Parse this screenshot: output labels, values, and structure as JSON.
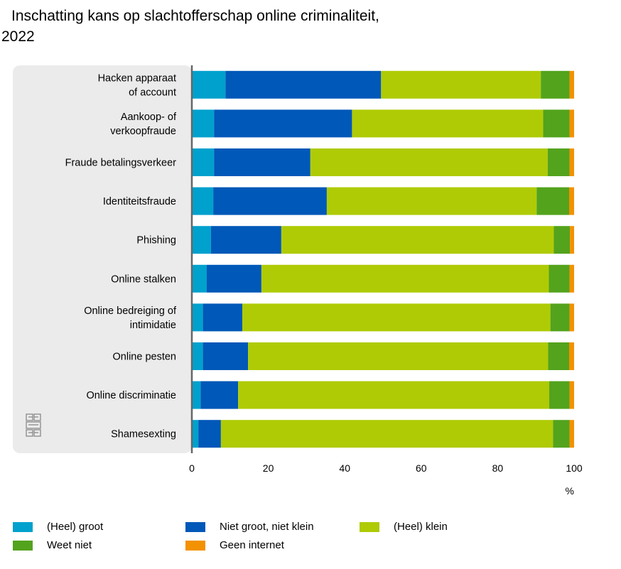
{
  "title": {
    "line1": "Inschatting kans op slachtofferschap online criminaliteit,",
    "line2": "2022"
  },
  "chart_data": {
    "type": "bar",
    "orientation": "horizontal",
    "stacked": true,
    "title": "Inschatting kans op slachtofferschap online criminaliteit, 2022",
    "xlabel": "%",
    "ylabel": "",
    "xlim": [
      0,
      100
    ],
    "xticks": [
      0,
      20,
      40,
      60,
      80,
      100
    ],
    "grid": false,
    "legend_position": "bottom",
    "categories": [
      [
        "Hacken apparaat",
        "of account"
      ],
      [
        "Aankoop- of",
        "verkoopfraude"
      ],
      [
        "Fraude betalingsverkeer"
      ],
      [
        "Identiteitsfraude"
      ],
      [
        "Phishing"
      ],
      [
        "Online stalken"
      ],
      [
        "Online bedreiging of",
        "intimidatie"
      ],
      [
        "Online pesten"
      ],
      [
        "Online discriminatie"
      ],
      [
        "Shamesexting"
      ]
    ],
    "series": [
      {
        "name": "(Heel) groot",
        "color": "#00a1cd",
        "values": [
          8.8,
          5.8,
          5.8,
          5.6,
          5.0,
          3.9,
          2.9,
          2.9,
          2.3,
          1.7
        ]
      },
      {
        "name": "Niet groot, niet klein",
        "color": "#0058b8",
        "values": [
          40.7,
          36.1,
          25.2,
          29.7,
          18.4,
          14.3,
          10.3,
          11.8,
          9.8,
          5.9
        ]
      },
      {
        "name": "(Heel) klein",
        "color": "#afcb05",
        "values": [
          41.8,
          50.0,
          62.1,
          54.9,
          71.3,
          75.2,
          80.6,
          78.5,
          81.4,
          86.9
        ]
      },
      {
        "name": "Weet niet",
        "color": "#53a31d",
        "values": [
          7.5,
          6.9,
          5.7,
          8.5,
          4.2,
          5.4,
          5.0,
          5.5,
          5.3,
          4.3
        ]
      },
      {
        "name": "Geen internet",
        "color": "#f39200",
        "values": [
          1.2,
          1.2,
          1.2,
          1.3,
          1.1,
          1.2,
          1.2,
          1.3,
          1.2,
          1.2
        ]
      }
    ]
  },
  "colors": {
    "panel": "#ebebeb",
    "axis": "#666666"
  },
  "icons": {
    "logo": "cbs-logo-icon"
  }
}
